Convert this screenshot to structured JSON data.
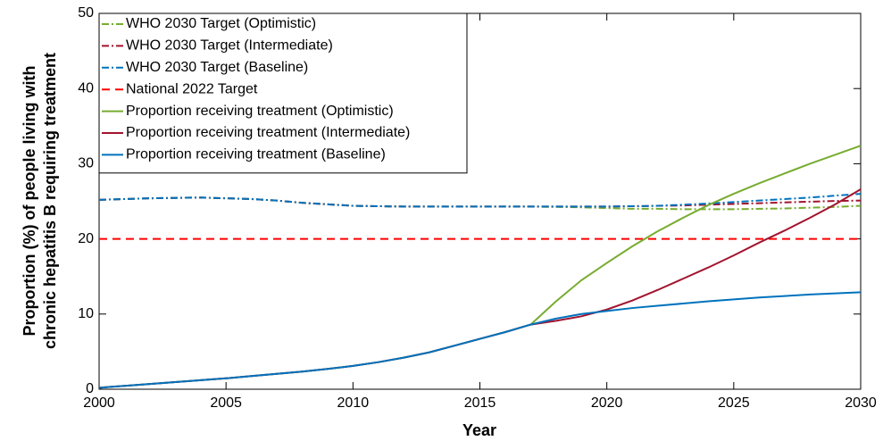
{
  "chart_data": {
    "type": "line",
    "xlabel": "Year",
    "ylabel": [
      "Proportion (%) of people living with",
      "chronic hepatitis B requiring treatment"
    ],
    "x": [
      2000,
      2001,
      2002,
      2003,
      2004,
      2005,
      2006,
      2007,
      2008,
      2009,
      2010,
      2011,
      2012,
      2013,
      2014,
      2015,
      2016,
      2017,
      2018,
      2019,
      2020,
      2021,
      2022,
      2023,
      2024,
      2025,
      2026,
      2027,
      2028,
      2029,
      2030
    ],
    "xlim": [
      2000,
      2030
    ],
    "xticks": [
      2000,
      2005,
      2010,
      2015,
      2020,
      2025,
      2030
    ],
    "ylim": [
      0,
      50
    ],
    "yticks": [
      0,
      10,
      20,
      30,
      40,
      50
    ],
    "legend": "upper left",
    "series": [
      {
        "name": "WHO 2030 Target (Optimistic)",
        "color": "#77ac30",
        "linestyle": "-.",
        "values": [
          25.2,
          25.3,
          25.4,
          25.45,
          25.5,
          25.4,
          25.3,
          25.1,
          24.8,
          24.6,
          24.4,
          24.35,
          24.3,
          24.3,
          24.3,
          24.3,
          24.3,
          24.3,
          24.25,
          24.2,
          24.1,
          24.0,
          24.0,
          23.95,
          23.95,
          23.95,
          24.0,
          24.05,
          24.15,
          24.25,
          24.4
        ]
      },
      {
        "name": "WHO 2030 Target (Intermediate)",
        "color": "#a2142f",
        "linestyle": "-.",
        "values": [
          25.2,
          25.3,
          25.4,
          25.45,
          25.5,
          25.4,
          25.3,
          25.1,
          24.8,
          24.6,
          24.4,
          24.35,
          24.3,
          24.3,
          24.3,
          24.3,
          24.3,
          24.3,
          24.3,
          24.3,
          24.3,
          24.35,
          24.4,
          24.45,
          24.55,
          24.65,
          24.75,
          24.85,
          24.95,
          25.05,
          25.1
        ]
      },
      {
        "name": "WHO 2030 Target (Baseline)",
        "color": "#0072bd",
        "linestyle": "-.",
        "values": [
          25.2,
          25.3,
          25.4,
          25.45,
          25.5,
          25.4,
          25.3,
          25.1,
          24.8,
          24.6,
          24.4,
          24.35,
          24.3,
          24.3,
          24.3,
          24.3,
          24.3,
          24.3,
          24.3,
          24.3,
          24.3,
          24.35,
          24.4,
          24.55,
          24.7,
          24.9,
          25.1,
          25.3,
          25.5,
          25.75,
          26.0
        ]
      },
      {
        "name": "National 2022 Target",
        "color": "#ff0000",
        "linestyle": "--",
        "values": [
          20,
          20,
          20,
          20,
          20,
          20,
          20,
          20,
          20,
          20,
          20,
          20,
          20,
          20,
          20,
          20,
          20,
          20,
          20,
          20,
          20,
          20,
          20,
          20,
          20,
          20,
          20,
          20,
          20,
          20,
          20
        ]
      },
      {
        "name": "Proportion receiving treatment (Optimistic)",
        "color": "#77ac30",
        "linestyle": "-",
        "values": [
          0.2,
          0.45,
          0.7,
          0.95,
          1.2,
          1.45,
          1.75,
          2.05,
          2.35,
          2.7,
          3.1,
          3.6,
          4.2,
          4.9,
          5.8,
          6.7,
          7.6,
          8.6,
          11.7,
          14.5,
          16.8,
          19.0,
          21.0,
          22.8,
          24.5,
          26.0,
          27.4,
          28.7,
          30.0,
          31.2,
          32.4
        ]
      },
      {
        "name": "Proportion receiving treatment (Intermediate)",
        "color": "#a2142f",
        "linestyle": "-",
        "values": [
          0.2,
          0.45,
          0.7,
          0.95,
          1.2,
          1.45,
          1.75,
          2.05,
          2.35,
          2.7,
          3.1,
          3.6,
          4.2,
          4.9,
          5.8,
          6.7,
          7.6,
          8.6,
          9.1,
          9.7,
          10.6,
          11.8,
          13.2,
          14.7,
          16.2,
          17.8,
          19.5,
          21.1,
          22.8,
          24.6,
          26.6
        ]
      },
      {
        "name": "Proportion receiving treatment (Baseline)",
        "color": "#0072bd",
        "linestyle": "-",
        "values": [
          0.2,
          0.45,
          0.7,
          0.95,
          1.2,
          1.45,
          1.75,
          2.05,
          2.35,
          2.7,
          3.1,
          3.6,
          4.2,
          4.9,
          5.8,
          6.7,
          7.6,
          8.6,
          9.4,
          10.0,
          10.4,
          10.8,
          11.1,
          11.4,
          11.7,
          11.95,
          12.2,
          12.4,
          12.6,
          12.75,
          12.9
        ]
      }
    ]
  }
}
